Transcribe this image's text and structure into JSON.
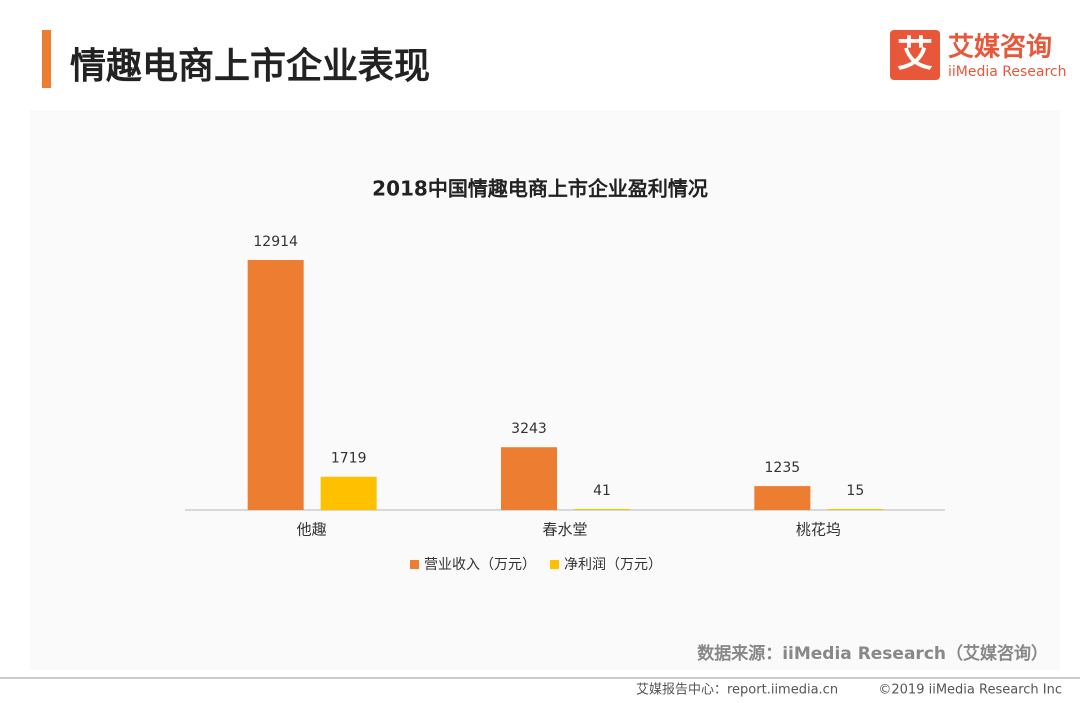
{
  "header": {
    "title": "情趣电商上市企业表现",
    "logo_mark": "艾",
    "logo_name": "艾媒咨询",
    "logo_sub": "iiMedia Research"
  },
  "chart_data": {
    "type": "bar",
    "title": "2018中国情趣电商上市企业盈利情况",
    "categories": [
      "他趣",
      "春水堂",
      "桃花坞"
    ],
    "series": [
      {
        "name": "营业收入（万元）",
        "color": "#ED7D31",
        "values": [
          12914,
          3243,
          1235
        ]
      },
      {
        "name": "净利润（万元）",
        "color": "#FFC000",
        "values": [
          1719,
          41,
          15
        ]
      }
    ],
    "legend": "bottom"
  },
  "source": "数据来源：iiMedia Research（艾媒咨询）",
  "footer": {
    "left": "艾媒报告中心：report.iimedia.cn",
    "right": "©2019  iiMedia Research  Inc"
  }
}
